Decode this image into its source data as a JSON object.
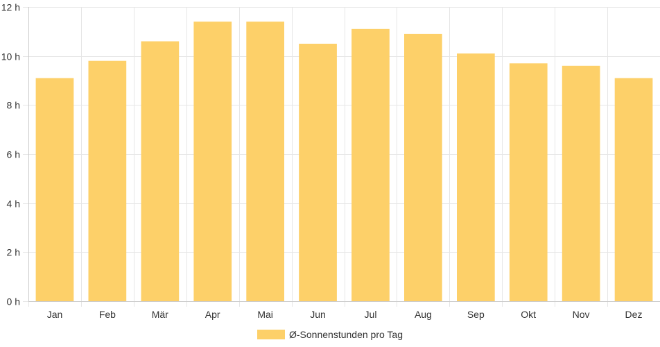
{
  "chart_data": {
    "type": "bar",
    "categories": [
      "Jan",
      "Feb",
      "Mär",
      "Apr",
      "Mai",
      "Jun",
      "Jul",
      "Aug",
      "Sep",
      "Okt",
      "Nov",
      "Dez"
    ],
    "series": [
      {
        "name": "Ø-Sonnenstunden pro Tag",
        "values": [
          9.1,
          9.8,
          10.6,
          11.4,
          11.4,
          10.5,
          11.1,
          10.9,
          10.1,
          9.7,
          9.6,
          9.1
        ],
        "color": "#fdd069"
      }
    ],
    "ylim": [
      0,
      12
    ],
    "yticks": [
      0,
      2,
      4,
      6,
      8,
      10,
      12
    ],
    "y_tick_suffix": " h",
    "grid": true,
    "legend_position": "bottom-center"
  },
  "legend": {
    "label": "Ø-Sonnenstunden pro Tag"
  }
}
